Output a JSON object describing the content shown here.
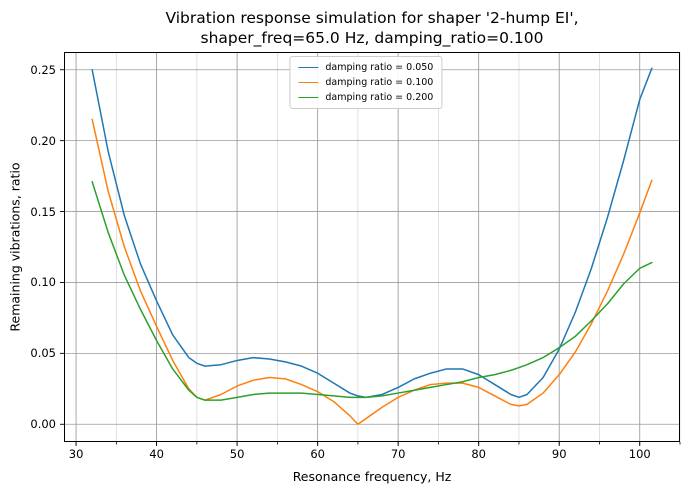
{
  "chart_data": {
    "type": "line",
    "title_line1": "Vibration response simulation for shaper '2-hump EI',",
    "title_line2": "shaper_freq=65.0 Hz, damping_ratio=0.100",
    "xlabel": "Resonance frequency, Hz",
    "ylabel": "Remaining vibrations, ratio",
    "xlim": [
      28.5,
      105.0
    ],
    "ylim": [
      -0.0125,
      0.2625
    ],
    "x_ticks": [
      30,
      40,
      50,
      60,
      70,
      80,
      90,
      100
    ],
    "x_tick_labels": [
      "30",
      "40",
      "50",
      "60",
      "70",
      "80",
      "90",
      "100"
    ],
    "y_ticks": [
      0.0,
      0.05,
      0.1,
      0.15,
      0.2,
      0.25
    ],
    "y_tick_labels": [
      "0.00",
      "0.05",
      "0.10",
      "0.15",
      "0.20",
      "0.25"
    ],
    "grid": {
      "on": true,
      "x_minor_step": 5,
      "major_color": "#9b9b9b",
      "minor_color": "#d9d9d9"
    },
    "legend_position": "upper center",
    "x": [
      32,
      34,
      36,
      38,
      40,
      42,
      44,
      45,
      46,
      48,
      50,
      52,
      54,
      56,
      58,
      60,
      62,
      64,
      65,
      66,
      68,
      70,
      72,
      74,
      76,
      78,
      80,
      82,
      84,
      85,
      86,
      88,
      90,
      92,
      94,
      96,
      98,
      100,
      101.5
    ],
    "series": [
      {
        "label": "damping ratio = 0.050",
        "color": "#1f77b4",
        "values": [
          0.25,
          0.192,
          0.147,
          0.113,
          0.087,
          0.063,
          0.047,
          0.043,
          0.041,
          0.042,
          0.045,
          0.047,
          0.046,
          0.044,
          0.041,
          0.036,
          0.029,
          0.022,
          0.02,
          0.019,
          0.021,
          0.026,
          0.032,
          0.036,
          0.039,
          0.039,
          0.035,
          0.028,
          0.021,
          0.019,
          0.021,
          0.033,
          0.053,
          0.079,
          0.11,
          0.146,
          0.186,
          0.229,
          0.251
        ]
      },
      {
        "label": "damping ratio = 0.100",
        "color": "#ff7f0e",
        "values": [
          0.215,
          0.164,
          0.125,
          0.094,
          0.069,
          0.045,
          0.025,
          0.019,
          0.017,
          0.021,
          0.027,
          0.031,
          0.033,
          0.032,
          0.028,
          0.023,
          0.016,
          0.006,
          0.0,
          0.004,
          0.012,
          0.019,
          0.024,
          0.028,
          0.029,
          0.029,
          0.026,
          0.02,
          0.014,
          0.013,
          0.014,
          0.022,
          0.035,
          0.051,
          0.071,
          0.094,
          0.12,
          0.149,
          0.172
        ]
      },
      {
        "label": "damping ratio = 0.200",
        "color": "#2ca02c",
        "values": [
          0.171,
          0.135,
          0.105,
          0.081,
          0.059,
          0.039,
          0.024,
          0.019,
          0.017,
          0.017,
          0.019,
          0.021,
          0.022,
          0.022,
          0.022,
          0.021,
          0.02,
          0.019,
          0.019,
          0.019,
          0.02,
          0.022,
          0.024,
          0.026,
          0.028,
          0.03,
          0.033,
          0.035,
          0.038,
          0.04,
          0.042,
          0.047,
          0.054,
          0.062,
          0.073,
          0.085,
          0.099,
          0.11,
          0.114
        ]
      }
    ]
  }
}
